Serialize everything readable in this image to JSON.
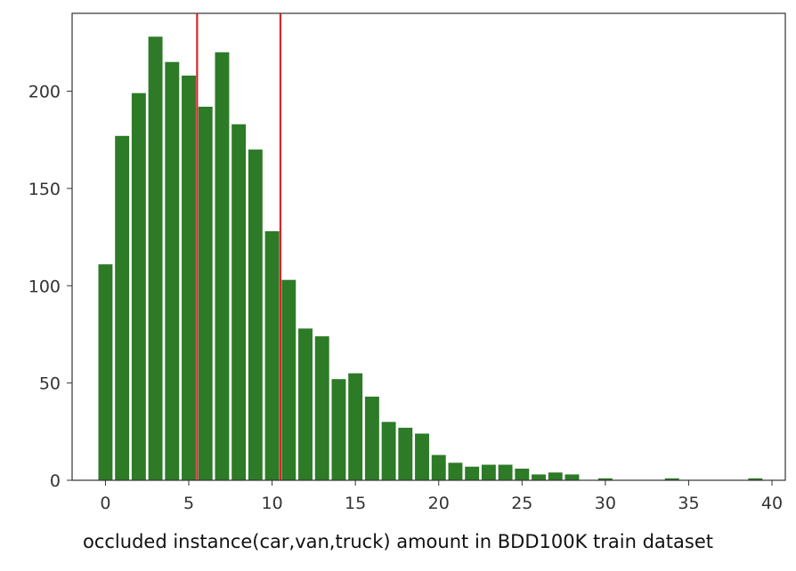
{
  "caption": "occluded instance(car,van,truck) amount in BDD100K train dataset",
  "chart_data": {
    "type": "bar",
    "title": "",
    "xlabel": "",
    "ylabel": "",
    "xlim": [
      -2,
      40.8
    ],
    "ylim": [
      0,
      240
    ],
    "x_ticks": [
      0,
      5,
      10,
      15,
      20,
      25,
      30,
      35,
      40
    ],
    "y_ticks": [
      0,
      50,
      100,
      150,
      200
    ],
    "bar_width": 0.85,
    "bar_color": "#2d7a27",
    "grid": false,
    "x": [
      0,
      1,
      2,
      3,
      4,
      5,
      6,
      7,
      8,
      9,
      10,
      11,
      12,
      13,
      14,
      15,
      16,
      17,
      18,
      19,
      20,
      21,
      22,
      23,
      24,
      25,
      26,
      27,
      28,
      29,
      30,
      31,
      32,
      33,
      34,
      35,
      36,
      37,
      38,
      39
    ],
    "values": [
      111,
      177,
      199,
      228,
      215,
      208,
      192,
      220,
      183,
      170,
      128,
      103,
      78,
      74,
      52,
      55,
      43,
      30,
      27,
      24,
      13,
      9,
      7,
      8,
      8,
      6,
      3,
      4,
      3,
      0,
      1,
      0,
      0,
      0,
      1,
      0,
      0,
      0,
      0,
      1
    ],
    "reference_lines": [
      {
        "x": 5.5,
        "color": "#d62728"
      },
      {
        "x": 10.5,
        "color": "#d62728"
      }
    ]
  }
}
